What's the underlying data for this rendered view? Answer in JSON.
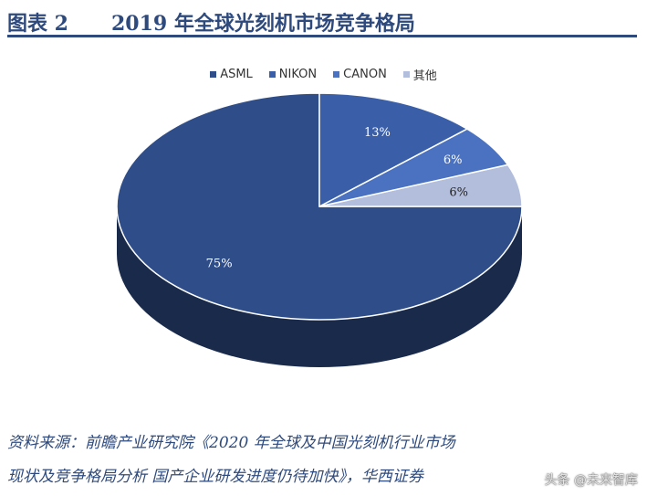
{
  "header": {
    "fig_num": "图表 2",
    "title": "2019 年全球光刻机市场竞争格局"
  },
  "chart_data": {
    "type": "pie",
    "series": [
      {
        "name": "ASML",
        "value": 75,
        "label": "75%",
        "color": "#2F4D89"
      },
      {
        "name": "NIKON",
        "value": 13,
        "label": "13%",
        "color": "#3A5FA8"
      },
      {
        "name": "CANON",
        "value": 6,
        "label": "6%",
        "color": "#4A72C0"
      },
      {
        "name": "其他",
        "value": 6,
        "label": "6%",
        "color": "#B3BEDC"
      }
    ],
    "legend_position": "top-center"
  },
  "source": {
    "line1": "资料来源：前瞻产业研究院《2020 年全球及中国光刻机行业市场",
    "line2": "现状及竞争格局分析 国产企业研发进度仍待加快》，华西证券"
  },
  "watermark": "头条 @未来智库"
}
